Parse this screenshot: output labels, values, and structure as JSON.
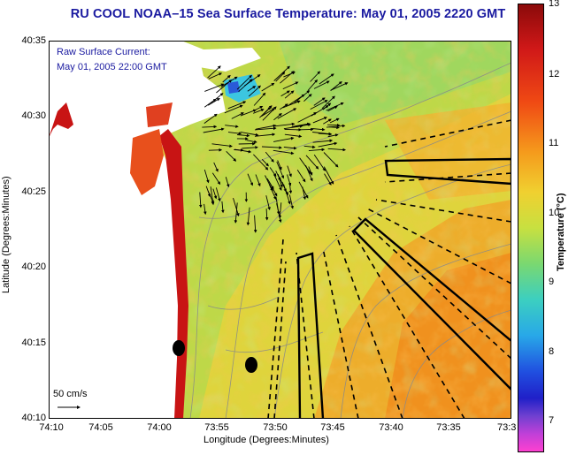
{
  "title": "RU COOL   NOAA–15  Sea Surface Temperature:  May 01, 2005 2220 GMT",
  "legend": {
    "current_line1": "Raw Surface Current:",
    "current_line2": "May 01, 2005 22:00 GMT",
    "scale_label": "50 cm/s"
  },
  "axes": {
    "ylabel": "Latitude (Degrees:Minutes)",
    "xlabel": "Longitude (Degrees:Minutes)",
    "lat_ticks": [
      "40:35",
      "40:30",
      "40:25",
      "40:20",
      "40:15",
      "40:10"
    ],
    "lon_ticks": [
      "74:10",
      "74:05",
      "74:00",
      "73:55",
      "73:50",
      "73:45",
      "73:40",
      "73:35",
      "73:3"
    ]
  },
  "colorbar": {
    "title": "Temperature (°C)",
    "ticks": [
      "13",
      "12",
      "11",
      "10",
      "9",
      "8",
      "7"
    ]
  },
  "colors": {
    "title": "#1a1aa0",
    "land": "#ffffff",
    "sst_warm": "#f08a1c",
    "sst_mid": "#e6d23a",
    "sst_cool": "#a7d84e",
    "coastal_hot": "#c81414"
  }
}
